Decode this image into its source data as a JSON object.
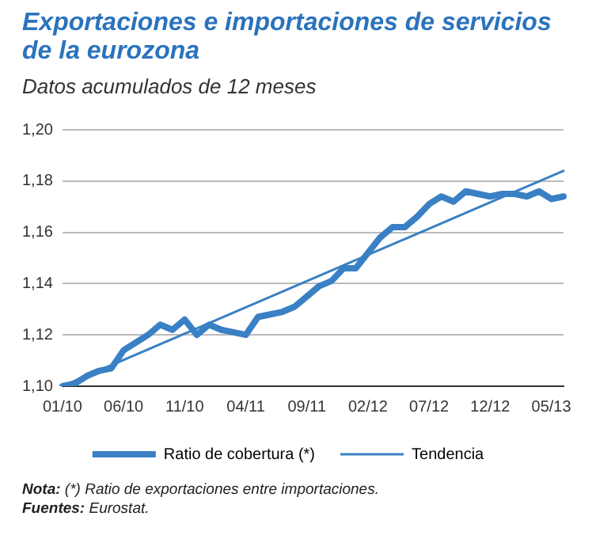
{
  "chart_data": {
    "type": "line",
    "title": "Exportaciones e importaciones de servicios de la eurozona",
    "subtitle": "Datos acumulados de 12 meses",
    "categories": [
      "01/10",
      null,
      null,
      null,
      null,
      "06/10",
      null,
      null,
      null,
      null,
      "11/10",
      null,
      null,
      null,
      null,
      "04/11",
      null,
      null,
      null,
      null,
      "09/11",
      null,
      null,
      null,
      null,
      "02/12",
      null,
      null,
      null,
      null,
      "07/12",
      null,
      null,
      null,
      null,
      "12/12",
      null,
      null,
      null,
      null,
      "05/13",
      null
    ],
    "series": [
      {
        "name": "Ratio de cobertura (*)",
        "color": "#3a80c4",
        "values": [
          1.1,
          1.101,
          1.104,
          1.106,
          1.107,
          1.114,
          1.117,
          1.12,
          1.124,
          1.122,
          1.126,
          1.12,
          1.124,
          1.122,
          1.121,
          1.12,
          1.127,
          1.128,
          1.129,
          1.131,
          1.135,
          1.139,
          1.141,
          1.146,
          1.146,
          1.152,
          1.158,
          1.162,
          1.162,
          1.166,
          1.171,
          1.174,
          1.172,
          1.176,
          1.175,
          1.174,
          1.175,
          1.175,
          1.174,
          1.176,
          1.173,
          1.174
        ]
      },
      {
        "name": "Tendencia",
        "color": "#3a80c4",
        "values": [
          1.1,
          null,
          null,
          null,
          null,
          null,
          null,
          null,
          null,
          null,
          null,
          null,
          null,
          null,
          null,
          null,
          null,
          null,
          null,
          null,
          null,
          null,
          null,
          null,
          null,
          null,
          null,
          null,
          null,
          null,
          null,
          null,
          null,
          null,
          null,
          null,
          null,
          null,
          null,
          null,
          null,
          1.184
        ]
      }
    ],
    "ylim": [
      1.1,
      1.2
    ],
    "yticks": [
      {
        "value": 1.1,
        "label": "1,10"
      },
      {
        "value": 1.12,
        "label": "1,12"
      },
      {
        "value": 1.14,
        "label": "1,14"
      },
      {
        "value": 1.16,
        "label": "1,16"
      },
      {
        "value": 1.18,
        "label": "1,18"
      },
      {
        "value": 1.2,
        "label": "1,20"
      }
    ],
    "grid": "y",
    "legend": "bottom",
    "marker": "none",
    "annotations": [
      "Nota: (*) Ratio de exportaciones entre importaciones.",
      "Fuentes: Eurostat."
    ]
  }
}
